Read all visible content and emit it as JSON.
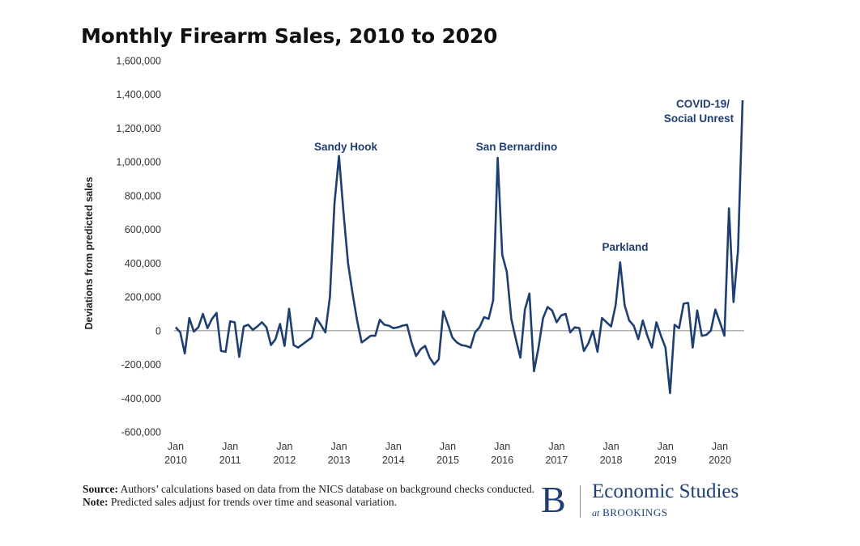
{
  "chart_data": {
    "type": "line",
    "title": "Monthly Firearm Sales, 2010 to 2020",
    "ylabel": "Deviations from predicted sales",
    "xlabel": "",
    "ylim": [
      -600000,
      1600000
    ],
    "yticks": [
      -600000,
      -400000,
      -200000,
      0,
      200000,
      400000,
      600000,
      800000,
      1000000,
      1200000,
      1400000,
      1600000
    ],
    "ytick_labels": [
      "-600,000",
      "-400,000",
      "-200,000",
      "0",
      "200,000",
      "400,000",
      "600,000",
      "800,000",
      "1,000,000",
      "1,200,000",
      "1,400,000",
      "1,600,000"
    ],
    "xticks": [
      {
        "month": 0,
        "line1": "Jan",
        "line2": "2010"
      },
      {
        "month": 12,
        "line1": "Jan",
        "line2": "2011"
      },
      {
        "month": 24,
        "line1": "Jan",
        "line2": "2012"
      },
      {
        "month": 36,
        "line1": "Jan",
        "line2": "2013"
      },
      {
        "month": 48,
        "line1": "Jan",
        "line2": "2014"
      },
      {
        "month": 60,
        "line1": "Jan",
        "line2": "2015"
      },
      {
        "month": 72,
        "line1": "Jan",
        "line2": "2016"
      },
      {
        "month": 84,
        "line1": "Jan",
        "line2": "2017"
      },
      {
        "month": 96,
        "line1": "Jan",
        "line2": "2018"
      },
      {
        "month": 108,
        "line1": "Jan",
        "line2": "2019"
      },
      {
        "month": 120,
        "line1": "Jan",
        "line2": "2020"
      }
    ],
    "grid": false,
    "series": [
      {
        "name": "",
        "color": "#1f3f73",
        "x_start": "2010-01",
        "values": [
          20000,
          -10000,
          -135000,
          75000,
          -5000,
          20000,
          100000,
          15000,
          70000,
          105000,
          -120000,
          -125000,
          55000,
          50000,
          -155000,
          25000,
          35000,
          5000,
          25000,
          50000,
          20000,
          -85000,
          -50000,
          40000,
          -90000,
          130000,
          -85000,
          -100000,
          -80000,
          -60000,
          -40000,
          75000,
          35000,
          -10000,
          200000,
          750000,
          1035000,
          700000,
          400000,
          220000,
          60000,
          -70000,
          -50000,
          -30000,
          -30000,
          65000,
          35000,
          30000,
          15000,
          20000,
          30000,
          35000,
          -70000,
          -150000,
          -110000,
          -90000,
          -160000,
          -200000,
          -170000,
          115000,
          40000,
          -40000,
          -70000,
          -85000,
          -90000,
          -100000,
          -10000,
          20000,
          80000,
          70000,
          180000,
          1025000,
          450000,
          350000,
          70000,
          -50000,
          -160000,
          125000,
          220000,
          -240000,
          -100000,
          75000,
          140000,
          120000,
          50000,
          90000,
          100000,
          -10000,
          20000,
          15000,
          -120000,
          -75000,
          0,
          -125000,
          75000,
          50000,
          25000,
          150000,
          405000,
          150000,
          60000,
          30000,
          -50000,
          60000,
          -30000,
          -100000,
          50000,
          -30000,
          -100000,
          -370000,
          35000,
          15000,
          160000,
          165000,
          -100000,
          120000,
          -30000,
          -25000,
          0,
          125000,
          50000,
          -30000,
          725000,
          170000,
          480000,
          1365000
        ]
      }
    ],
    "annotations": [
      {
        "text": "Sandy Hook",
        "month": 36,
        "value": 1035000
      },
      {
        "text": "San Bernardino",
        "month": 71,
        "value": 1025000
      },
      {
        "text": "Parkland",
        "month": 98,
        "value": 405000
      },
      {
        "text": "COVID-19/",
        "month": 126,
        "value": 1365000
      },
      {
        "text": "Social Unrest",
        "month": 126,
        "value": 1365000
      }
    ]
  },
  "footnotes": {
    "source_label": "Source:",
    "source_text": "Authors’ calculations based on data from the NICS database on background checks conducted.",
    "note_label": "Note:",
    "note_text": "Predicted sales adjust for trends over time and seasonal variation."
  },
  "logo": {
    "letter": "B",
    "main": "Economic Studies",
    "sub_small": "at",
    "sub_caps": "BROOKINGS",
    "color": "#1f3f73"
  }
}
